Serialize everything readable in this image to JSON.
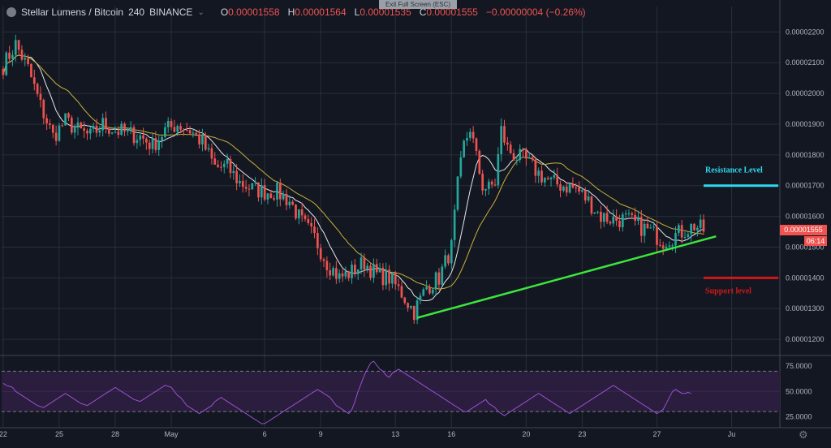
{
  "header": {
    "symbol": "Stellar Lumens / Bitcoin",
    "timeframe": "240",
    "exchange": "BINANCE",
    "ohlc": [
      {
        "k": "O",
        "v": "0.00001558"
      },
      {
        "k": "H",
        "v": "0.00001564"
      },
      {
        "k": "L",
        "v": "0.00001535"
      },
      {
        "k": "C",
        "v": "0.00001555"
      }
    ],
    "change": "−0.00000004 (−0.26%)"
  },
  "exit_banner": "Exit Full Screen (ESC)",
  "last_price_tag": "0.00001555",
  "countdown_tag": "06:14",
  "colors": {
    "background": "#131722",
    "up": "#26a69a",
    "down": "#ef5350",
    "ma_fast": "#e8e8e8",
    "ma_slow": "#c9b037",
    "trendline": "#3ce63c",
    "resistance": "#2ed9f0",
    "support": "#d01818",
    "rsi_line": "#9c4fd1",
    "rsi_band": "#2a1d3d"
  },
  "chart_data": [
    {
      "type": "candlestick",
      "title": "Stellar Lumens / Bitcoin 240 BINANCE",
      "ylim": [
        1.15e-05,
        2.23e-05
      ],
      "y_ticks": [
        "0.00002200",
        "0.00002100",
        "0.00002000",
        "0.00001900",
        "0.00001800",
        "0.00001700",
        "0.00001600",
        "0.00001500",
        "0.00001400",
        "0.00001300",
        "0.00001200"
      ],
      "x_tick_labels": [
        "22",
        "25",
        "28",
        "May",
        "6",
        "9",
        "13",
        "16",
        "20",
        "23",
        "27",
        "Ju"
      ],
      "x_tick_candle_index": [
        0,
        18,
        36,
        54,
        84,
        102,
        126,
        144,
        168,
        186,
        210,
        234
      ],
      "candle_count": 216,
      "anchors": [
        [
          0,
          2.09e-05
        ],
        [
          4,
          2.16e-05
        ],
        [
          8,
          2.08e-05
        ],
        [
          12,
          1.96e-05
        ],
        [
          16,
          1.86e-05
        ],
        [
          20,
          1.91e-05
        ],
        [
          24,
          1.88e-05
        ],
        [
          28,
          1.86e-05
        ],
        [
          32,
          1.9e-05
        ],
        [
          36,
          1.88e-05
        ],
        [
          40,
          1.87e-05
        ],
        [
          44,
          1.86e-05
        ],
        [
          48,
          1.83e-05
        ],
        [
          52,
          1.88e-05
        ],
        [
          56,
          1.9e-05
        ],
        [
          60,
          1.88e-05
        ],
        [
          64,
          1.84e-05
        ],
        [
          68,
          1.76e-05
        ],
        [
          72,
          1.76e-05
        ],
        [
          76,
          1.71e-05
        ],
        [
          80,
          1.69e-05
        ],
        [
          84,
          1.68e-05
        ],
        [
          88,
          1.68e-05
        ],
        [
          92,
          1.65e-05
        ],
        [
          96,
          1.58e-05
        ],
        [
          100,
          1.53e-05
        ],
        [
          104,
          1.45e-05
        ],
        [
          108,
          1.4e-05
        ],
        [
          112,
          1.42e-05
        ],
        [
          116,
          1.45e-05
        ],
        [
          120,
          1.41e-05
        ],
        [
          124,
          1.4e-05
        ],
        [
          128,
          1.35e-05
        ],
        [
          132,
          1.29e-05
        ],
        [
          136,
          1.37e-05
        ],
        [
          140,
          1.4e-05
        ],
        [
          144,
          1.5e-05
        ],
        [
          146,
          1.7e-05
        ],
        [
          148,
          1.83e-05
        ],
        [
          150,
          1.89e-05
        ],
        [
          152,
          1.79e-05
        ],
        [
          154,
          1.7e-05
        ],
        [
          156,
          1.69e-05
        ],
        [
          158,
          1.71e-05
        ],
        [
          160,
          1.88e-05
        ],
        [
          162,
          1.82e-05
        ],
        [
          164,
          1.8e-05
        ],
        [
          168,
          1.78e-05
        ],
        [
          172,
          1.74e-05
        ],
        [
          176,
          1.71e-05
        ],
        [
          180,
          1.7e-05
        ],
        [
          184,
          1.69e-05
        ],
        [
          188,
          1.65e-05
        ],
        [
          192,
          1.6e-05
        ],
        [
          196,
          1.59e-05
        ],
        [
          200,
          1.59e-05
        ],
        [
          204,
          1.57e-05
        ],
        [
          208,
          1.55e-05
        ],
        [
          212,
          1.52e-05
        ],
        [
          216,
          1.54e-05
        ],
        [
          220,
          1.56e-05
        ],
        [
          222,
          1.57e-05
        ],
        [
          225,
          1.555e-05
        ]
      ],
      "moving_averages": [
        {
          "period": 9,
          "color_key": "ma_fast"
        },
        {
          "period": 21,
          "color_key": "ma_slow"
        }
      ],
      "annotations": [
        {
          "kind": "trendline",
          "from": [
            133,
            1.27e-05
          ],
          "to": [
            229,
            1.535e-05
          ]
        },
        {
          "kind": "hline",
          "label": "Resistance Level",
          "y": 1.7e-05,
          "x_from": 225,
          "x_to": 249
        },
        {
          "kind": "hline",
          "label": "Support level",
          "y": 1.4e-05,
          "x_from": 225,
          "x_to": 249
        }
      ]
    },
    {
      "type": "line",
      "title": "",
      "ylim": [
        14,
        84
      ],
      "y_ticks": [
        "75.0000",
        "50.0000",
        "25.0000"
      ],
      "bands": [
        30,
        70
      ],
      "series": [
        {
          "values": [
            58,
            56,
            55,
            54,
            50,
            48,
            46,
            44,
            42,
            40,
            38,
            36,
            35,
            34,
            36,
            38,
            40,
            42,
            44,
            46,
            48,
            46,
            44,
            42,
            40,
            38,
            37,
            36,
            38,
            40,
            42,
            44,
            46,
            48,
            50,
            52,
            54,
            52,
            50,
            48,
            46,
            44,
            42,
            41,
            40,
            42,
            44,
            46,
            48,
            50,
            52,
            54,
            56,
            55,
            54,
            50,
            46,
            44,
            40,
            36,
            34,
            32,
            30,
            28,
            30,
            32,
            34,
            36,
            40,
            42,
            44,
            42,
            40,
            38,
            36,
            34,
            32,
            30,
            28,
            26,
            24,
            22,
            20,
            18,
            18,
            20,
            22,
            24,
            26,
            28,
            30,
            32,
            34,
            36,
            38,
            40,
            42,
            44,
            46,
            48,
            50,
            52,
            50,
            48,
            46,
            44,
            40,
            36,
            34,
            32,
            30,
            28,
            32,
            40,
            50,
            58,
            66,
            72,
            78,
            80,
            76,
            72,
            70,
            66,
            64,
            68,
            70,
            72,
            70,
            68,
            66,
            64,
            62,
            60,
            58,
            56,
            54,
            52,
            50,
            48,
            46,
            44,
            42,
            40,
            38,
            36,
            34,
            32,
            30,
            30,
            32,
            34,
            36,
            38,
            40,
            42,
            38,
            36,
            34,
            30,
            28,
            26,
            28,
            30,
            32,
            34,
            36,
            38,
            40,
            42,
            44,
            46,
            48,
            46,
            44,
            42,
            40,
            38,
            36,
            34,
            32,
            30,
            28,
            30,
            32,
            34,
            36,
            38,
            40,
            42,
            44,
            46,
            48,
            50,
            52,
            54,
            56,
            54,
            52,
            50,
            48,
            46,
            44,
            42,
            40,
            38,
            36,
            34,
            32,
            30,
            28,
            30,
            32,
            38,
            44,
            50,
            52,
            50,
            48,
            48,
            49,
            48
          ]
        }
      ]
    }
  ]
}
